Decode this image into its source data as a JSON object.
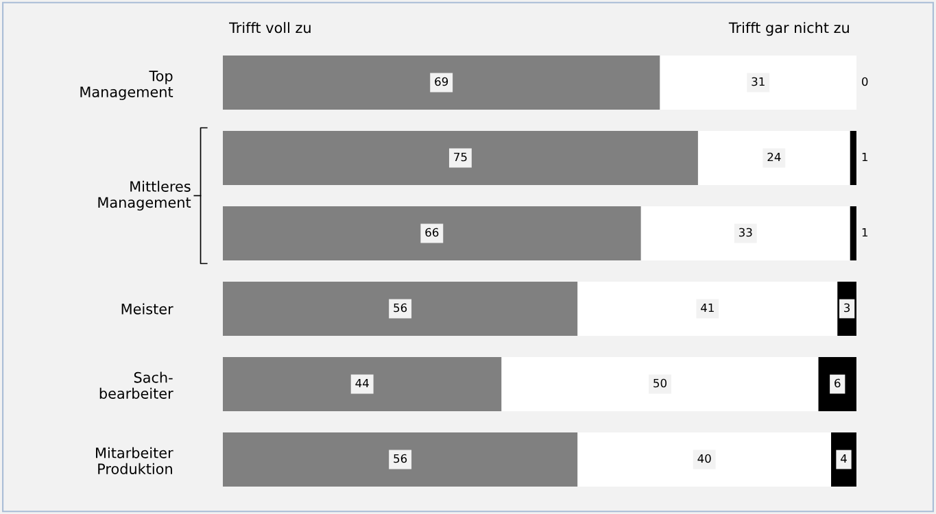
{
  "chart_data": {
    "type": "bar",
    "orientation": "horizontal",
    "stacked": true,
    "data_labels": true,
    "categories": [
      "Top\nManagement",
      null,
      null,
      "Meister",
      "Sach-\nbearbeiter",
      "Mitarbeiter\nProduktion"
    ],
    "series": [
      {
        "color": "#808080",
        "values": [
          69,
          75,
          66,
          56,
          44,
          56
        ]
      },
      {
        "color": "#ffffff",
        "values": [
          31,
          24,
          33,
          41,
          50,
          40
        ]
      },
      {
        "color": "#000000",
        "values": [
          0,
          1,
          1,
          3,
          6,
          4
        ]
      }
    ],
    "annotations": [
      "Trifft voll zu",
      "Trifft gar nicht zu",
      "Mittleres\nManagement"
    ]
  }
}
